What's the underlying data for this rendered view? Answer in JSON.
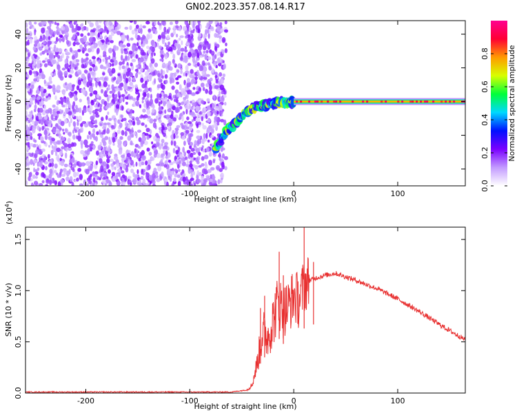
{
  "title": "GN02.2023.357.08.14.R17",
  "chart_data": [
    {
      "type": "heatmap",
      "xlabel": "Height of straight line (km)",
      "ylabel": "Frequency (Hz)",
      "xlim": [
        -258,
        165
      ],
      "ylim": [
        -50,
        48
      ],
      "xticks": [
        -200,
        -100,
        0,
        100
      ],
      "yticks": [
        -40,
        -20,
        0,
        20,
        40
      ],
      "noise_region_x": [
        -258,
        -65
      ],
      "transition_track": [
        {
          "x": -75,
          "y": -28
        },
        {
          "x": -65,
          "y": -18
        },
        {
          "x": -55,
          "y": -12
        },
        {
          "x": -45,
          "y": -6
        },
        {
          "x": -35,
          "y": -3
        },
        {
          "x": -25,
          "y": -2
        },
        {
          "x": -15,
          "y": 0
        },
        {
          "x": -5,
          "y": -1
        },
        {
          "x": 0,
          "y": 0
        }
      ],
      "carrier_line": {
        "x_start": 0,
        "x_end": 165,
        "frequency": 0
      },
      "colorbar": {
        "label": "Normalized spectral amplitude",
        "ticks": [
          "0.0",
          "0.2",
          "0.4",
          "0.6",
          "0.8"
        ],
        "range": [
          0,
          1
        ],
        "colors": [
          "#ffffff",
          "#c39bff",
          "#7a00ff",
          "#0010ff",
          "#00d9ff",
          "#00ff3a",
          "#d8ff00",
          "#ff9a00",
          "#ff0033",
          "#ff0090"
        ]
      }
    },
    {
      "type": "line",
      "xlabel": "Height of straight line (km)",
      "ylabel": "SNR (10 * v/v)",
      "scale_label": "(x10",
      "scale_exp": "4",
      "scale_close": ")",
      "xlim": [
        -258,
        165
      ],
      "ylim": [
        0,
        1.62
      ],
      "xticks": [
        -200,
        -100,
        0,
        100
      ],
      "yticks": [
        "0.0",
        "0.5",
        "1.0",
        "1.5"
      ],
      "color": "#e83030",
      "series": [
        {
          "points": [
            {
              "x": -258,
              "y": 0.01
            },
            {
              "x": -60,
              "y": 0.01
            },
            {
              "x": -45,
              "y": 0.03
            },
            {
              "x": -40,
              "y": 0.08
            },
            {
              "x": -35,
              "y": 0.3
            },
            {
              "x": -30,
              "y": 0.6
            },
            {
              "x": -25,
              "y": 0.55
            },
            {
              "x": -20,
              "y": 0.7
            },
            {
              "x": -15,
              "y": 0.9
            },
            {
              "x": -10,
              "y": 0.8
            },
            {
              "x": -5,
              "y": 0.85
            },
            {
              "x": 0,
              "y": 0.95
            },
            {
              "x": 5,
              "y": 0.9
            },
            {
              "x": 10,
              "y": 1.05
            },
            {
              "x": 15,
              "y": 1.1
            },
            {
              "x": 20,
              "y": 1.12
            },
            {
              "x": 30,
              "y": 1.15
            },
            {
              "x": 40,
              "y": 1.17
            },
            {
              "x": 60,
              "y": 1.1
            },
            {
              "x": 80,
              "y": 1.02
            },
            {
              "x": 100,
              "y": 0.92
            },
            {
              "x": 120,
              "y": 0.8
            },
            {
              "x": 140,
              "y": 0.67
            },
            {
              "x": 165,
              "y": 0.52
            }
          ],
          "spikes": [
            {
              "x": -32,
              "y": 0.83
            },
            {
              "x": -28,
              "y": 0.95
            },
            {
              "x": -14,
              "y": 1.38
            },
            {
              "x": -10,
              "y": 1.15
            },
            {
              "x": 10,
              "y": 1.62
            },
            {
              "x": 19,
              "y": 1.28
            }
          ]
        }
      ]
    }
  ]
}
